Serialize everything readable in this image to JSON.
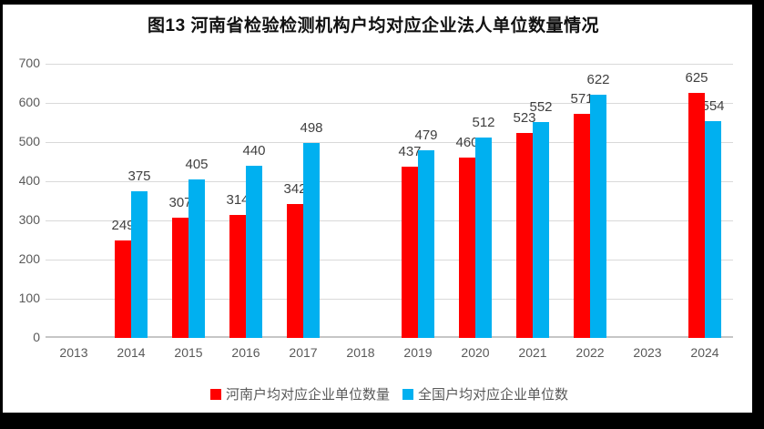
{
  "chart_data": {
    "type": "bar",
    "title": "图13  河南省检验检测机构户均对应企业法人单位数量情况",
    "categories": [
      "2013",
      "2014",
      "2015",
      "2016",
      "2017",
      "2018",
      "2019",
      "2020",
      "2021",
      "2022",
      "2023",
      "2024"
    ],
    "series": [
      {
        "name": "河南户均对应企业单位数量",
        "color": "#FF0000",
        "values": [
          null,
          249,
          307,
          314,
          342,
          null,
          437,
          460,
          523,
          571,
          null,
          625
        ]
      },
      {
        "name": "全国户均对应企业单位数",
        "color": "#00B0F0",
        "values": [
          null,
          375,
          405,
          440,
          498,
          null,
          479,
          512,
          552,
          622,
          null,
          554
        ]
      }
    ],
    "ylim": [
      0,
      700
    ],
    "yticks": [
      0,
      100,
      200,
      300,
      400,
      500,
      600,
      700
    ],
    "grid": true,
    "data_labels": true,
    "legend_position": "bottom",
    "xlabel": "",
    "ylabel": ""
  },
  "colors": {
    "frame": "#000000",
    "panel": "#FFFFFF",
    "gridline": "#D9D9D9",
    "axis_text": "#595959",
    "data_label_text": "#404040",
    "title_text": "#111111"
  }
}
